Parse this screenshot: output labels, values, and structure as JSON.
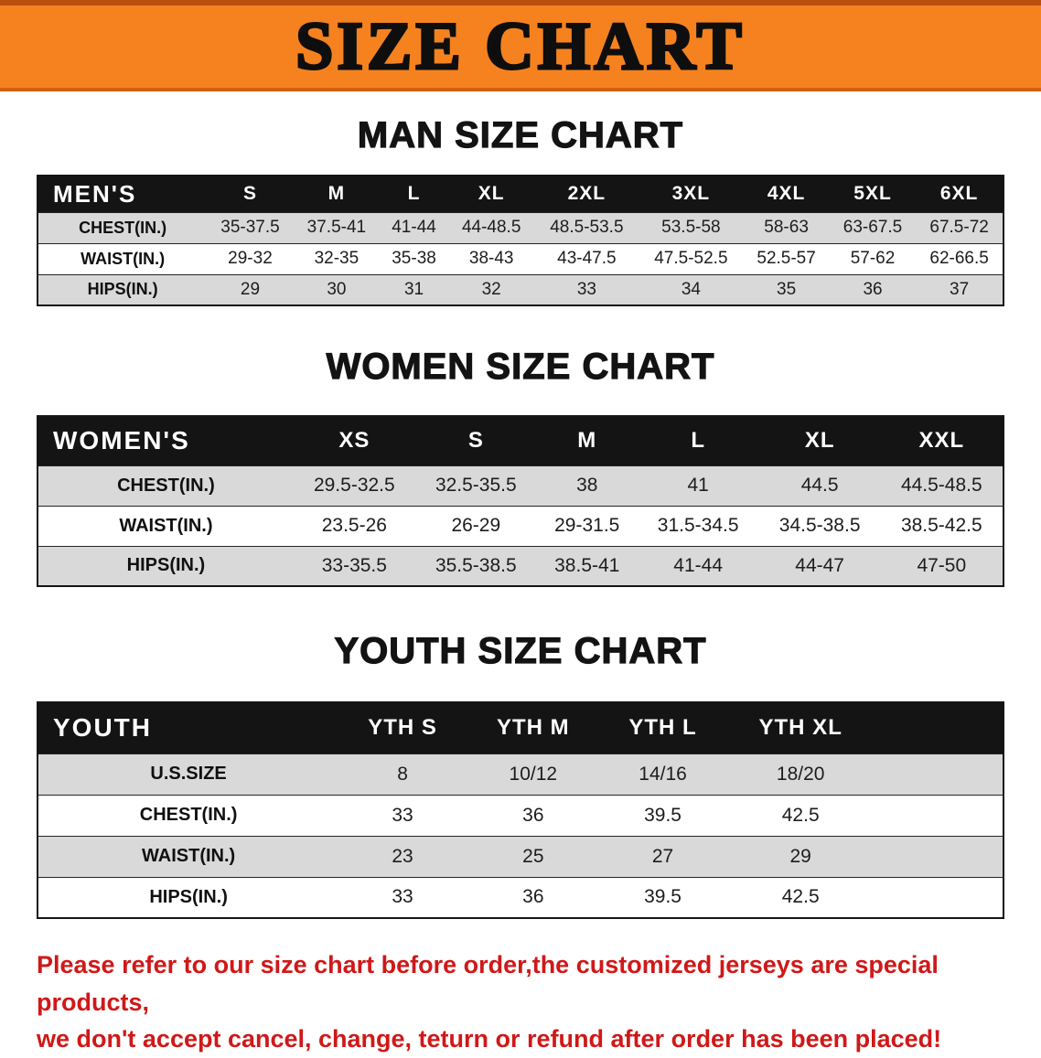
{
  "banner": {
    "title": "SIZE CHART"
  },
  "sections": [
    {
      "heading": "MAN SIZE CHART",
      "table": {
        "header": [
          "MEN'S",
          "S",
          "M",
          "L",
          "XL",
          "2XL",
          "3XL",
          "4XL",
          "5XL",
          "6XL"
        ],
        "rows": [
          [
            "CHEST(IN.)",
            "35-37.5",
            "37.5-41",
            "41-44",
            "44-48.5",
            "48.5-53.5",
            "53.5-58",
            "58-63",
            "63-67.5",
            "67.5-72"
          ],
          [
            "WAIST(IN.)",
            "29-32",
            "32-35",
            "35-38",
            "38-43",
            "43-47.5",
            "47.5-52.5",
            "52.5-57",
            "57-62",
            "62-66.5"
          ],
          [
            "HIPS(IN.)",
            "29",
            "30",
            "31",
            "32",
            "33",
            "34",
            "35",
            "36",
            "37"
          ]
        ]
      }
    },
    {
      "heading": "WOMEN SIZE CHART",
      "table": {
        "header": [
          "WOMEN'S",
          "XS",
          "S",
          "M",
          "L",
          "XL",
          "XXL"
        ],
        "rows": [
          [
            "CHEST(IN.)",
            "29.5-32.5",
            "32.5-35.5",
            "38",
            "41",
            "44.5",
            "44.5-48.5"
          ],
          [
            "WAIST(IN.)",
            "23.5-26",
            "26-29",
            "29-31.5",
            "31.5-34.5",
            "34.5-38.5",
            "38.5-42.5"
          ],
          [
            "HIPS(IN.)",
            "33-35.5",
            "35.5-38.5",
            "38.5-41",
            "41-44",
            "44-47",
            "47-50"
          ]
        ]
      }
    },
    {
      "heading": "YOUTH SIZE CHART",
      "table": {
        "header": [
          "YOUTH",
          "YTH S",
          "YTH M",
          "YTH L",
          "YTH XL"
        ],
        "rows": [
          [
            "U.S.SIZE",
            "8",
            "10/12",
            "14/16",
            "18/20"
          ],
          [
            "CHEST(IN.)",
            "33",
            "36",
            "39.5",
            "42.5"
          ],
          [
            "WAIST(IN.)",
            "23",
            "25",
            "27",
            "29"
          ],
          [
            "HIPS(IN.)",
            "33",
            "36",
            "39.5",
            "42.5"
          ]
        ]
      }
    }
  ],
  "footer": {
    "lines": [
      "Please refer to our size chart before order,the customized jerseys are special products,",
      "we don't accept cancel, change, teturn or refund after order has been placed!"
    ]
  },
  "colors": {
    "banner_bg": "#F5821F",
    "table_header_bg": "#141414",
    "row_alt_bg": "#D9D9D9",
    "note_text": "#D01818"
  }
}
